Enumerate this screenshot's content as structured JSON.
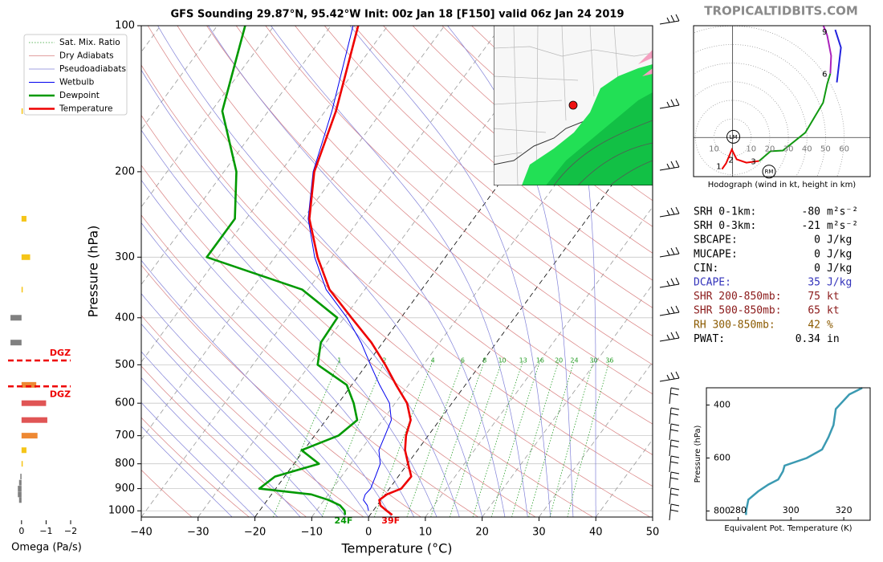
{
  "brand": "TROPICALTIDBITS.COM",
  "chart_data": [
    {
      "type": "skewt",
      "title": "GFS Sounding 29.87°N, 95.42°W Init: 00z Jan 18 [F150] valid 06z Jan 24 2019",
      "xlabel": "Temperature (°C)",
      "ylabel": "Pressure (hPa)",
      "xlim": [
        -40,
        50
      ],
      "xticks": [
        {
          "value": -40,
          "label": "−40"
        },
        {
          "value": -30,
          "label": "−30"
        },
        {
          "value": -20,
          "label": "−20"
        },
        {
          "value": -10,
          "label": "−10"
        },
        0,
        10,
        20,
        30,
        40,
        50
      ],
      "ylim": [
        1030,
        100
      ],
      "yticks": [
        100,
        200,
        300,
        400,
        500,
        600,
        700,
        800,
        900,
        1000
      ],
      "log_y": true,
      "grid": true,
      "legend": "upper left",
      "reference_lines": [
        {
          "name": "Sat. Mix. Ratio",
          "color": "#2ca02c"
        },
        {
          "name": "Dry Adiabats",
          "color": "#d98080"
        },
        {
          "name": "Pseudoadiabats",
          "color": "#8080d8"
        }
      ],
      "mixing_ratio_labels": [
        1,
        2,
        4,
        6,
        8,
        10,
        13,
        16,
        20,
        24,
        30,
        36
      ],
      "pressure": [
        1020,
        1000,
        975,
        950,
        925,
        900,
        850,
        800,
        750,
        700,
        650,
        600,
        550,
        500,
        450,
        400,
        350,
        300,
        250,
        200,
        150,
        100
      ],
      "series": [
        {
          "name": "Wetbulb",
          "color": "#0000ee",
          "values": [
            null,
            -0.8,
            -1.7,
            -3.1,
            -3.5,
            -3.3,
            -4,
            -4.8,
            -6.8,
            -7.6,
            -8.5,
            -11,
            -15.1,
            -19.3,
            -23.8,
            -29.5,
            -36.8,
            -43,
            -49.1,
            -54.3,
            -58.8,
            -66.1
          ]
        },
        {
          "name": "Dewpoint",
          "color": "#009900",
          "surface_label": "24F",
          "values": [
            -4.4,
            -5,
            -6.5,
            -9.2,
            -13,
            -22.9,
            -21.7,
            -15.6,
            -20.4,
            -15.8,
            -14.5,
            -17.3,
            -20.9,
            -28.6,
            -30.9,
            -31.2,
            -41,
            -62,
            -62,
            -67.8,
            -78.1,
            -85.1
          ]
        },
        {
          "name": "Temperature",
          "color": "#ee0000",
          "surface_label": "39F",
          "values": [
            3.9,
            2.4,
            0.6,
            -0.3,
            0.3,
            2.1,
            2.3,
            0.1,
            -2.2,
            -3.9,
            -5.1,
            -7.9,
            -12.2,
            -16.7,
            -22,
            -28.7,
            -36.2,
            -42.5,
            -48.9,
            -54.1,
            -58.1,
            -65.2
          ]
        }
      ]
    },
    {
      "type": "barh",
      "xlabel": "Omega (Pa/s)",
      "xlim": [
        0.55,
        -2
      ],
      "xticks": [
        0,
        {
          "value": -1,
          "label": "−1"
        },
        {
          "value": -2,
          "label": "−2"
        }
      ],
      "pressure": [
        150,
        250,
        300,
        350,
        400,
        450,
        550,
        600,
        650,
        700,
        750,
        800,
        850,
        875,
        900,
        925,
        950
      ],
      "values": [
        -0.05,
        -0.2,
        -0.35,
        -0.05,
        0.45,
        0.45,
        -0.6,
        -1.0,
        -1.05,
        -0.65,
        -0.2,
        -0.05,
        0.05,
        0.1,
        0.15,
        0.15,
        0.1
      ],
      "colors": [
        "#f5c518",
        "#f5c518",
        "#f5c518",
        "#f5c518",
        "#808080",
        "#808080",
        "#ee8833",
        "#e05555",
        "#e05555",
        "#ee8833",
        "#f5c518",
        "#f5c518",
        "#808080",
        "#808080",
        "#808080",
        "#808080",
        "#808080"
      ],
      "dgz": [
        {
          "label": "DGZ",
          "pressure": 490
        },
        {
          "label": "DGZ",
          "pressure": 554
        }
      ]
    },
    {
      "type": "hodograph",
      "xlabel": "Hodograph (wind in kt, height in km)",
      "xlim": [
        -21,
        74
      ],
      "ylim": [
        -21,
        60
      ],
      "rings": [
        10,
        20,
        30,
        40,
        50,
        60
      ],
      "series": [
        {
          "color": "#ee0000",
          "u": [
            -5.7,
            -3.5,
            -0.4,
            2.2,
            7.4,
            14.3
          ],
          "values": [
            -17,
            -13.9,
            -6.5,
            -11.7,
            -13.5,
            -12.6
          ]
        },
        {
          "color": "#119911",
          "u": [
            14.3,
            20.4,
            27,
            39.1,
            48.7,
            50.9,
            52.6
          ],
          "values": [
            -12.6,
            -7.4,
            -7,
            2.6,
            18.7,
            28.7,
            34.3
          ]
        },
        {
          "color": "#aa22bb",
          "u": [
            52.6,
            53,
            50.9,
            48.7
          ],
          "values": [
            34.3,
            43.9,
            54.8,
            60.4
          ]
        },
        {
          "color": "#2222dd",
          "u": [
            55.2,
            58.3,
            56.1
          ],
          "values": [
            57.8,
            48.3,
            29.6
          ]
        }
      ],
      "heights": [
        1,
        2,
        3,
        6,
        9
      ],
      "heights_u": [
        -4.3,
        2.2,
        14.3,
        52.6,
        52.6
      ],
      "heights_v": [
        -15.2,
        -11.7,
        -12.6,
        34.3,
        57
      ],
      "storm_motion": [
        {
          "label": "LM",
          "u": 0.4,
          "v": 0.4
        },
        {
          "label": "RM",
          "u": 19.6,
          "v": -18.3
        }
      ]
    },
    {
      "type": "line",
      "xlabel": "Equivalent Pot. Temperature (K)",
      "ylabel": "Pressure (hPa)",
      "xlim": [
        268,
        330
      ],
      "xticks": [
        280,
        300,
        320
      ],
      "ylim": [
        835,
        335
      ],
      "yticks": [
        400,
        600,
        800
      ],
      "color": "#3b9ab2",
      "y": [
        815,
        800,
        757,
        726,
        700,
        681,
        650,
        629,
        600,
        568,
        522,
        476,
        415,
        360,
        336
      ],
      "values": [
        283.0,
        283.0,
        283.9,
        287.6,
        291.5,
        295.2,
        297.0,
        297.6,
        306.0,
        311.8,
        314.2,
        316.1,
        317.0,
        322.1,
        327.0
      ]
    }
  ],
  "parameters": {
    "rows": [
      {
        "label": "SRH 0-1km:",
        "value": "-80",
        "unit": "m²s⁻²",
        "color": "#000000"
      },
      {
        "label": "SRH 0-3km:",
        "value": "-21",
        "unit": "m²s⁻²",
        "color": "#000000"
      },
      {
        "label": "SBCAPE:",
        "value": "0",
        "unit": "J/kg",
        "color": "#000000"
      },
      {
        "label": "MUCAPE:",
        "value": "0",
        "unit": "J/kg",
        "color": "#000000"
      },
      {
        "label": "CIN:",
        "value": "0",
        "unit": "J/kg",
        "color": "#000000"
      },
      {
        "label": "DCAPE:",
        "value": "35",
        "unit": "J/kg",
        "color": "#3333bb"
      },
      {
        "label": "SHR 200-850mb:",
        "value": "75",
        "unit": "kt",
        "color": "#8b1a1a"
      },
      {
        "label": "SHR 500-850mb:",
        "value": "65",
        "unit": "kt",
        "color": "#8b1a1a"
      },
      {
        "label": "RH 300-850mb:",
        "value": "42",
        "unit": "%",
        "color": "#8b5a00"
      },
      {
        "label": "PWAT:",
        "value": "0.34",
        "unit": "in",
        "color": "#000000"
      }
    ]
  }
}
